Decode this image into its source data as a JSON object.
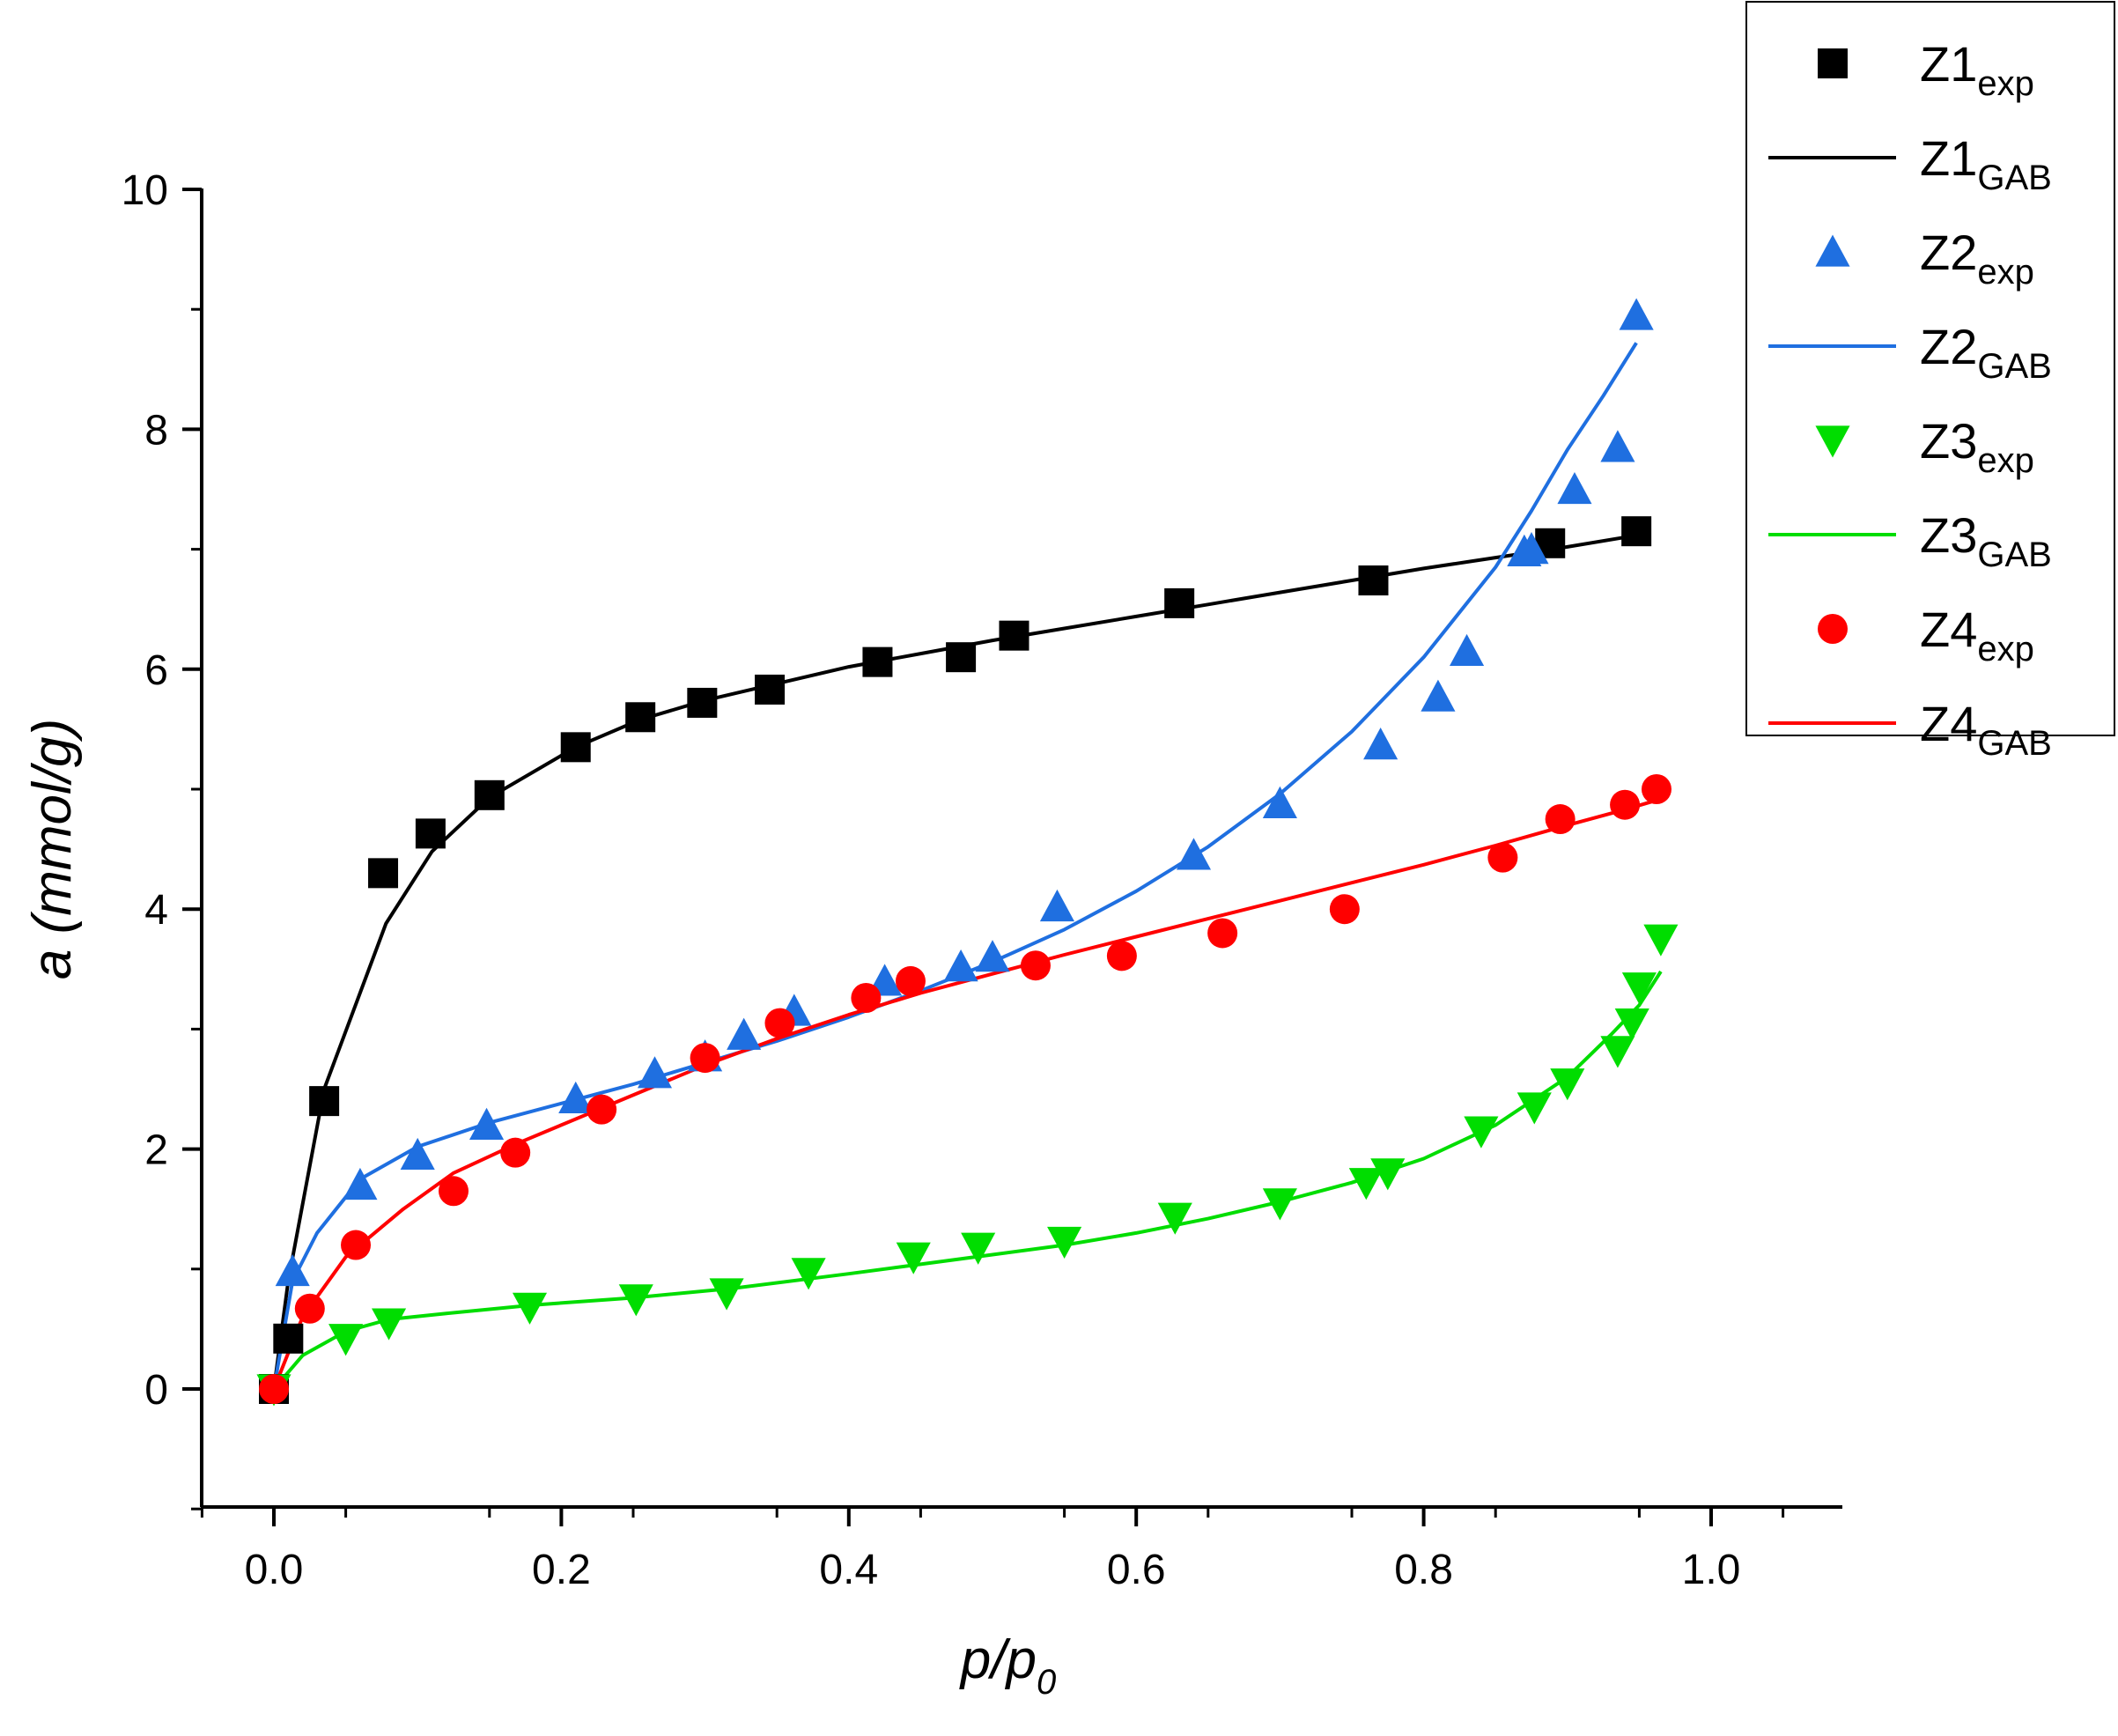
{
  "chart_data": {
    "type": "scatter",
    "title": "",
    "xlabel": {
      "main": "p/p",
      "sub": "0"
    },
    "ylabel": "a (mmol/g)",
    "xlim": [
      -0.05,
      1.1
    ],
    "ylim": [
      -1,
      10
    ],
    "xticks": [
      0.0,
      0.2,
      0.4,
      0.6,
      0.8,
      1.0
    ],
    "xtick_labels": [
      "0.0",
      "0.2",
      "0.4",
      "0.6",
      "0.8",
      "1.0"
    ],
    "yticks": [
      0,
      2,
      4,
      6,
      8,
      10
    ],
    "ytick_labels": [
      "0",
      "2",
      "4",
      "6",
      "8",
      "10"
    ],
    "legend_position": "top-right outside",
    "series": [
      {
        "id": "z1exp",
        "label": "Z1",
        "sub": "exp",
        "kind": "points",
        "marker": "square",
        "color": "#000000",
        "x": [
          0.0,
          0.01,
          0.035,
          0.076,
          0.109,
          0.15,
          0.21,
          0.255,
          0.298,
          0.345,
          0.42,
          0.478,
          0.515,
          0.63,
          0.765,
          0.888,
          0.948
        ],
        "y": [
          0.0,
          0.42,
          2.4,
          4.3,
          4.63,
          4.95,
          5.35,
          5.6,
          5.72,
          5.83,
          6.06,
          6.1,
          6.28,
          6.55,
          6.74,
          7.05,
          7.15
        ]
      },
      {
        "id": "z1gab",
        "label": "Z1",
        "sub": "GAB",
        "kind": "line",
        "color": "#000000",
        "x": [
          0.0,
          0.01,
          0.035,
          0.078,
          0.11,
          0.15,
          0.21,
          0.255,
          0.3,
          0.35,
          0.4,
          0.45,
          0.5,
          0.55,
          0.6,
          0.65,
          0.7,
          0.75,
          0.8,
          0.85,
          0.9,
          0.95
        ],
        "y": [
          0.0,
          0.9,
          2.5,
          3.88,
          4.48,
          4.93,
          5.35,
          5.58,
          5.74,
          5.88,
          6.02,
          6.13,
          6.24,
          6.34,
          6.44,
          6.54,
          6.64,
          6.74,
          6.84,
          6.93,
          7.02,
          7.12
        ]
      },
      {
        "id": "z2exp",
        "label": "Z2",
        "sub": "exp",
        "kind": "points",
        "marker": "triangle-up",
        "color": "#1f6fe0",
        "x": [
          0.013,
          0.06,
          0.1,
          0.148,
          0.21,
          0.265,
          0.3,
          0.327,
          0.362,
          0.425,
          0.478,
          0.5,
          0.545,
          0.64,
          0.7,
          0.77,
          0.81,
          0.83,
          0.87,
          0.875,
          0.905,
          0.935,
          0.948
        ],
        "y": [
          0.98,
          1.7,
          1.95,
          2.2,
          2.42,
          2.63,
          2.77,
          2.95,
          3.15,
          3.4,
          3.52,
          3.6,
          4.02,
          4.45,
          4.88,
          5.37,
          5.77,
          6.15,
          6.98,
          7.0,
          7.5,
          7.85,
          8.95
        ]
      },
      {
        "id": "z2gab",
        "label": "Z2",
        "sub": "GAB",
        "kind": "line",
        "color": "#1f6fe0",
        "x": [
          0.0,
          0.013,
          0.03,
          0.06,
          0.1,
          0.15,
          0.2,
          0.25,
          0.3,
          0.35,
          0.4,
          0.45,
          0.5,
          0.55,
          0.6,
          0.65,
          0.7,
          0.75,
          0.8,
          0.85,
          0.875,
          0.9,
          0.925,
          0.948
        ],
        "y": [
          0.0,
          0.9,
          1.3,
          1.75,
          2.02,
          2.22,
          2.38,
          2.54,
          2.72,
          2.9,
          3.1,
          3.32,
          3.56,
          3.83,
          4.15,
          4.52,
          4.96,
          5.48,
          6.1,
          6.85,
          7.32,
          7.83,
          8.28,
          8.72
        ]
      },
      {
        "id": "z3exp",
        "label": "Z3",
        "sub": "exp",
        "kind": "points",
        "marker": "triangle-down",
        "color": "#00dd00",
        "x": [
          0.0,
          0.05,
          0.08,
          0.178,
          0.252,
          0.315,
          0.372,
          0.445,
          0.49,
          0.55,
          0.627,
          0.7,
          0.76,
          0.775,
          0.84,
          0.877,
          0.9,
          0.935,
          0.945,
          0.95,
          0.965
        ],
        "y": [
          0.0,
          0.42,
          0.55,
          0.68,
          0.75,
          0.8,
          0.97,
          1.1,
          1.18,
          1.23,
          1.43,
          1.55,
          1.72,
          1.8,
          2.15,
          2.35,
          2.55,
          2.82,
          3.05,
          3.35,
          3.75
        ]
      },
      {
        "id": "z3gab",
        "label": "Z3",
        "sub": "GAB",
        "kind": "line",
        "color": "#00dd00",
        "x": [
          0.0,
          0.02,
          0.05,
          0.08,
          0.12,
          0.18,
          0.25,
          0.32,
          0.4,
          0.45,
          0.5,
          0.55,
          0.6,
          0.65,
          0.7,
          0.75,
          0.8,
          0.85,
          0.9,
          0.93,
          0.95,
          0.965
        ],
        "y": [
          0.0,
          0.28,
          0.48,
          0.58,
          0.63,
          0.7,
          0.76,
          0.84,
          0.96,
          1.04,
          1.12,
          1.2,
          1.3,
          1.42,
          1.56,
          1.72,
          1.92,
          2.2,
          2.6,
          2.95,
          3.2,
          3.48
        ]
      },
      {
        "id": "z4exp",
        "label": "Z4",
        "sub": "exp",
        "kind": "points",
        "marker": "circle",
        "color": "#ff0000",
        "x": [
          0.0,
          0.025,
          0.057,
          0.125,
          0.168,
          0.228,
          0.3,
          0.352,
          0.412,
          0.443,
          0.53,
          0.59,
          0.66,
          0.745,
          0.855,
          0.895,
          0.94,
          0.962
        ],
        "y": [
          0.0,
          0.67,
          1.2,
          1.65,
          1.97,
          2.33,
          2.76,
          3.05,
          3.26,
          3.4,
          3.53,
          3.61,
          3.8,
          4.0,
          4.43,
          4.75,
          4.87,
          5.0
        ]
      },
      {
        "id": "z4gab",
        "label": "Z4",
        "sub": "GAB",
        "kind": "line",
        "color": "#ff0000",
        "x": [
          0.0,
          0.02,
          0.05,
          0.09,
          0.125,
          0.17,
          0.23,
          0.3,
          0.35,
          0.4,
          0.45,
          0.5,
          0.55,
          0.6,
          0.65,
          0.7,
          0.75,
          0.8,
          0.85,
          0.9,
          0.94,
          0.96
        ],
        "y": [
          0.0,
          0.6,
          1.1,
          1.5,
          1.8,
          2.05,
          2.35,
          2.7,
          2.92,
          3.12,
          3.3,
          3.46,
          3.62,
          3.77,
          3.92,
          4.07,
          4.22,
          4.37,
          4.53,
          4.7,
          4.83,
          4.9
        ]
      }
    ]
  }
}
